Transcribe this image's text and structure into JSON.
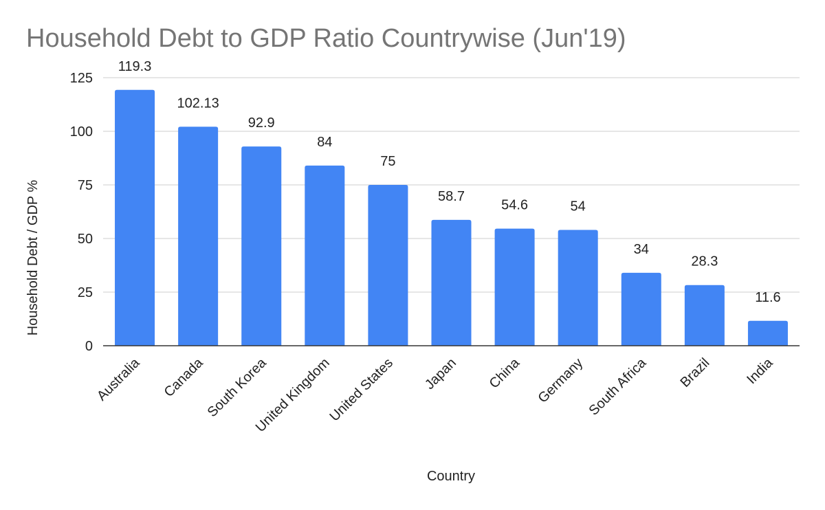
{
  "chart_data": {
    "type": "bar",
    "title": "Household Debt to GDP Ratio Countrywise (Jun'19)",
    "xlabel": "Country",
    "ylabel": "Household Debt / GDP %",
    "categories": [
      "Australia",
      "Canada",
      "South Korea",
      "United Kingdom",
      "United States",
      "Japan",
      "China",
      "Germany",
      "South Africa",
      "Brazil",
      "India"
    ],
    "values": [
      119.3,
      102.13,
      92.9,
      84,
      75,
      58.7,
      54.6,
      54,
      34,
      28.3,
      11.6
    ],
    "data_labels": [
      "119.3",
      "102.13",
      "92.9",
      "84",
      "75",
      "58.7",
      "54.6",
      "54",
      "34",
      "28.3",
      "11.6"
    ],
    "ylim": [
      0,
      125
    ],
    "yticks": [
      "0",
      "25",
      "50",
      "75",
      "100",
      "125"
    ],
    "grid": true,
    "legend": "none",
    "bar_color": "#4285f4"
  }
}
